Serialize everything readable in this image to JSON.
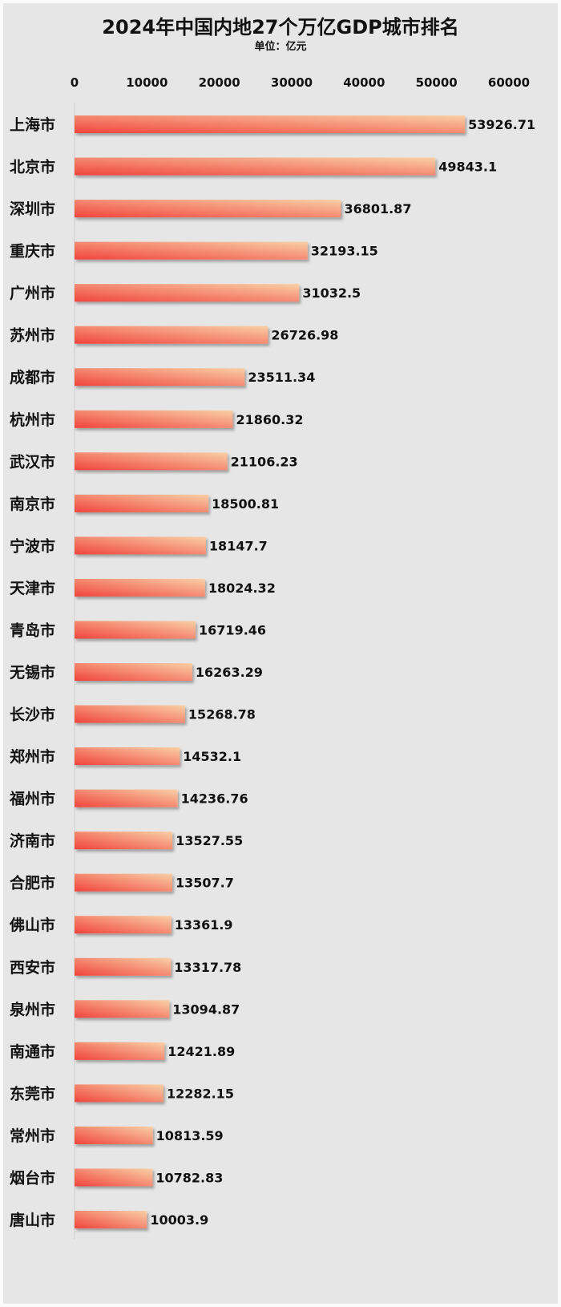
{
  "chart_data": {
    "type": "bar",
    "orientation": "horizontal",
    "title": "2024年中国内地27个万亿GDP城市排名",
    "subtitle": "单位：亿元",
    "xlim": [
      0,
      60000
    ],
    "xticks": [
      0,
      10000,
      20000,
      30000,
      40000,
      50000,
      60000
    ],
    "x_axis_position": "top",
    "grid": false,
    "bar_colors": {
      "start": "#f0443c",
      "end": "#f9d0a6"
    },
    "background": "#e6e6e6",
    "categories": [
      "上海市",
      "北京市",
      "深圳市",
      "重庆市",
      "广州市",
      "苏州市",
      "成都市",
      "杭州市",
      "武汉市",
      "南京市",
      "宁波市",
      "天津市",
      "青岛市",
      "无锡市",
      "长沙市",
      "郑州市",
      "福州市",
      "济南市",
      "合肥市",
      "佛山市",
      "西安市",
      "泉州市",
      "南通市",
      "东莞市",
      "常州市",
      "烟台市",
      "唐山市"
    ],
    "values": [
      53926.71,
      49843.1,
      36801.87,
      32193.15,
      31032.5,
      26726.98,
      23511.34,
      21860.32,
      21106.23,
      18500.81,
      18147.7,
      18024.32,
      16719.46,
      16263.29,
      15268.78,
      14532.1,
      14236.76,
      13527.55,
      13507.7,
      13361.9,
      13317.78,
      13094.87,
      12421.89,
      12282.15,
      10813.59,
      10782.83,
      10003.9
    ],
    "data_labels": [
      "53926.71",
      "49843.1",
      "36801.87",
      "32193.15",
      "31032.5",
      "26726.98",
      "23511.34",
      "21860.32",
      "21106.23",
      "18500.81",
      "18147.7",
      "18024.32",
      "16719.46",
      "16263.29",
      "15268.78",
      "14532.1",
      "14236.76",
      "13527.55",
      "13507.7",
      "13361.9",
      "13317.78",
      "13094.87",
      "12421.89",
      "12282.15",
      "10813.59",
      "10782.83",
      "10003.9"
    ]
  }
}
